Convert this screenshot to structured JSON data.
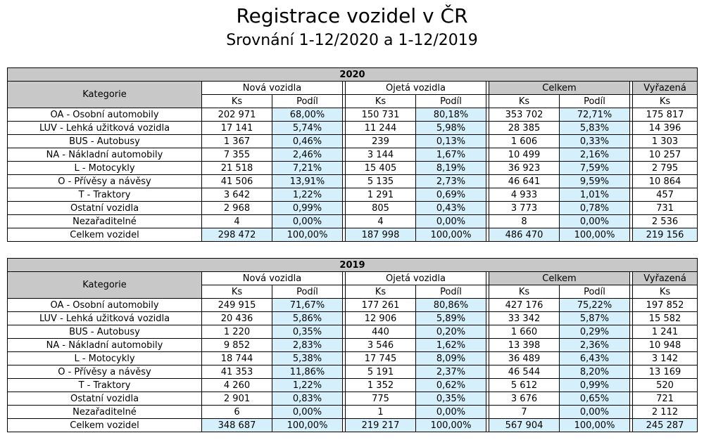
{
  "title": "Registrace vozidel v ČR",
  "subtitle": "Srovnání 1-12/2020 a 1-12/2019",
  "headers": {
    "kategorie": "Kategorie",
    "nova": "Nová vozidla",
    "ojeta": "Ojetá vozidla",
    "celkem": "Celkem",
    "vyrazena": "Vyřazená",
    "ks": "Ks",
    "podil": "Podíl"
  },
  "tables": [
    {
      "year": "2020",
      "rows": [
        {
          "cat": "OA - Osobní automobily",
          "nk": "202 971",
          "np": "68,00%",
          "ok": "150 731",
          "op": "80,18%",
          "ck": "353 702",
          "cp": "72,71%",
          "v": "175 817"
        },
        {
          "cat": "LUV - Lehká užitková vozidla",
          "nk": "17 141",
          "np": "5,74%",
          "ok": "11 244",
          "op": "5,98%",
          "ck": "28 385",
          "cp": "5,83%",
          "v": "14 396"
        },
        {
          "cat": "BUS - Autobusy",
          "nk": "1 367",
          "np": "0,46%",
          "ok": "239",
          "op": "0,13%",
          "ck": "1 606",
          "cp": "0,33%",
          "v": "1 303"
        },
        {
          "cat": "NA - Nákladní automobily",
          "nk": "7 355",
          "np": "2,46%",
          "ok": "3 144",
          "op": "1,67%",
          "ck": "10 499",
          "cp": "2,16%",
          "v": "10 257"
        },
        {
          "cat": "L - Motocykly",
          "nk": "21 518",
          "np": "7,21%",
          "ok": "15 405",
          "op": "8,19%",
          "ck": "36 923",
          "cp": "7,59%",
          "v": "2 795"
        },
        {
          "cat": "O - Přívěsy a návěsy",
          "nk": "41 506",
          "np": "13,91%",
          "ok": "5 135",
          "op": "2,73%",
          "ck": "46 641",
          "cp": "9,59%",
          "v": "10 864"
        },
        {
          "cat": "T - Traktory",
          "nk": "3 642",
          "np": "1,22%",
          "ok": "1 291",
          "op": "0,69%",
          "ck": "4 933",
          "cp": "1,01%",
          "v": "457"
        },
        {
          "cat": "Ostatní vozidla",
          "nk": "2 968",
          "np": "0,99%",
          "ok": "805",
          "op": "0,43%",
          "ck": "3 773",
          "cp": "0,78%",
          "v": "731"
        },
        {
          "cat": "Nezařaditelné",
          "nk": "4",
          "np": "0,00%",
          "ok": "4",
          "op": "0,00%",
          "ck": "8",
          "cp": "0,00%",
          "v": "2 536"
        },
        {
          "cat": "Celkem vozidel",
          "nk": "298 472",
          "np": "100,00%",
          "ok": "187 998",
          "op": "100,00%",
          "ck": "486 470",
          "cp": "100,00%",
          "v": "219 156"
        }
      ]
    },
    {
      "year": "2019",
      "rows": [
        {
          "cat": "OA - Osobní automobily",
          "nk": "249 915",
          "np": "71,67%",
          "ok": "177 261",
          "op": "80,86%",
          "ck": "427 176",
          "cp": "75,22%",
          "v": "197 852"
        },
        {
          "cat": "LUV - Lehká užitková vozidla",
          "nk": "20 436",
          "np": "5,86%",
          "ok": "12 906",
          "op": "5,89%",
          "ck": "33 342",
          "cp": "5,87%",
          "v": "15 582"
        },
        {
          "cat": "BUS - Autobusy",
          "nk": "1 220",
          "np": "0,35%",
          "ok": "440",
          "op": "0,20%",
          "ck": "1 660",
          "cp": "0,29%",
          "v": "1 241"
        },
        {
          "cat": "NA - Nákladní automobily",
          "nk": "9 852",
          "np": "2,83%",
          "ok": "3 546",
          "op": "1,62%",
          "ck": "13 398",
          "cp": "2,36%",
          "v": "10 948"
        },
        {
          "cat": "L - Motocykly",
          "nk": "18 744",
          "np": "5,38%",
          "ok": "17 745",
          "op": "8,09%",
          "ck": "36 489",
          "cp": "6,43%",
          "v": "3 142"
        },
        {
          "cat": "O - Přívěsy a návěsy",
          "nk": "41 353",
          "np": "11,86%",
          "ok": "5 191",
          "op": "2,37%",
          "ck": "46 544",
          "cp": "8,20%",
          "v": "13 169"
        },
        {
          "cat": "T - Traktory",
          "nk": "4 260",
          "np": "1,22%",
          "ok": "1 352",
          "op": "0,62%",
          "ck": "5 612",
          "cp": "0,99%",
          "v": "520"
        },
        {
          "cat": "Ostatní vozidla",
          "nk": "2 901",
          "np": "0,83%",
          "ok": "775",
          "op": "0,35%",
          "ck": "3 676",
          "cp": "0,65%",
          "v": "721"
        },
        {
          "cat": "Nezařaditelné",
          "nk": "6",
          "np": "0,00%",
          "ok": "1",
          "op": "0,00%",
          "ck": "7",
          "cp": "0,00%",
          "v": "2 112"
        },
        {
          "cat": "Celkem vozidel",
          "nk": "348 687",
          "np": "100,00%",
          "ok": "219 217",
          "op": "100,00%",
          "ck": "567 904",
          "cp": "100,00%",
          "v": "245 287"
        }
      ]
    }
  ]
}
